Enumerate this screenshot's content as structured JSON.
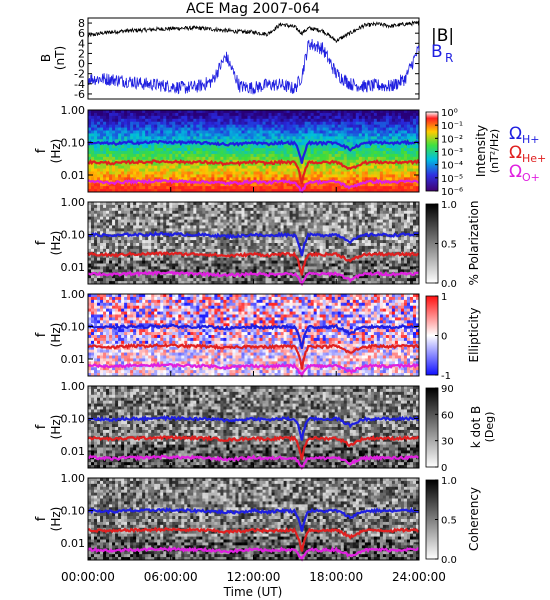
{
  "chart_data": [
    {
      "type": "line",
      "title": "ACE Mag 2007-064",
      "ylabel": "B",
      "yunit": "(nT)",
      "ylim": [
        -7,
        9
      ],
      "yticks": [
        "8",
        "6",
        "4",
        "2",
        "0",
        "-2",
        "-4",
        "-6"
      ],
      "ytick_values": [
        8,
        6,
        4,
        2,
        0,
        -2,
        -4,
        -6
      ],
      "series": [
        {
          "name": "|B|",
          "color": "#000000",
          "x": [
            0,
            1,
            2,
            3,
            4,
            5,
            6,
            7,
            8,
            9,
            10,
            11,
            12,
            13,
            14,
            15,
            15.5,
            16,
            17,
            18,
            19,
            20,
            21,
            22,
            23,
            24
          ],
          "values": [
            5.5,
            6.0,
            6.3,
            6.5,
            6.6,
            6.8,
            6.9,
            7.0,
            7.0,
            6.8,
            6.5,
            6.3,
            6.2,
            5.8,
            7.8,
            7.2,
            6.0,
            7.0,
            6.5,
            4.5,
            6.0,
            7.5,
            7.8,
            7.4,
            7.8,
            8.0
          ]
        },
        {
          "name": "B",
          "subscript": "R",
          "color": "#1f1fe0",
          "x": [
            0,
            1,
            2,
            3,
            4,
            5,
            6,
            7,
            8,
            9,
            10,
            11,
            12,
            13,
            14,
            15,
            15.5,
            16,
            17,
            18,
            19,
            20,
            21,
            22,
            23,
            24
          ],
          "values": [
            -3,
            -3,
            -3.2,
            -3.5,
            -4,
            -4.2,
            -4.5,
            -4.8,
            -4.5,
            -3.5,
            1.5,
            -4.5,
            -4.8,
            -4.2,
            -4.2,
            -5,
            -2.5,
            4,
            3,
            -2,
            -4,
            -4.5,
            -4.3,
            -4.5,
            -3,
            3
          ]
        }
      ]
    },
    {
      "type": "heatmap",
      "ylabel": "f",
      "yunit": "(Hz)",
      "cbar_label": "Intensity",
      "cbar_unit": "(nT²/Hz)",
      "cbar_ticks": [
        "10⁰",
        "10⁻¹",
        "10⁻²",
        "10⁻³",
        "10⁻⁴",
        "10⁻⁵",
        "10⁻⁶"
      ],
      "cbar_range": [
        -6,
        0
      ],
      "cbar_scale": "log",
      "legend": [
        {
          "label": "Ω",
          "sub": "H+",
          "color": "#1f1fe0"
        },
        {
          "label": "Ω",
          "sub": "He+",
          "color": "#e02020"
        },
        {
          "label": "Ω",
          "sub": "O+",
          "color": "#e020e0"
        }
      ]
    },
    {
      "type": "heatmap",
      "ylabel": "f",
      "yunit": "(Hz)",
      "cbar_label": "% Polarization",
      "cbar_ticks": [
        "1.0",
        "0.5",
        "0.0"
      ],
      "cbar_range": [
        0,
        1
      ]
    },
    {
      "type": "heatmap",
      "ylabel": "f",
      "yunit": "(Hz)",
      "cbar_label": "Ellipticity",
      "cbar_ticks": [
        "1",
        "0",
        "-1"
      ],
      "cbar_range": [
        -1,
        1
      ]
    },
    {
      "type": "heatmap",
      "ylabel": "f",
      "yunit": "(Hz)",
      "cbar_label": "k dot B",
      "cbar_unit": "(Deg)",
      "cbar_ticks": [
        "90",
        "60",
        "30",
        "0"
      ],
      "cbar_range": [
        0,
        90
      ]
    },
    {
      "type": "heatmap",
      "ylabel": "f",
      "yunit": "(Hz)",
      "cbar_label": "Coherency",
      "cbar_ticks": [
        "1.0",
        "0.5",
        "0.0"
      ],
      "cbar_range": [
        0,
        1
      ]
    }
  ],
  "spectrogram_axes": {
    "yscale": "log",
    "ylim": [
      0.003,
      1.0
    ],
    "yticks": [
      "1.00",
      "0.10",
      "0.01"
    ],
    "ytick_values": [
      1.0,
      0.1,
      0.01
    ]
  },
  "gyro_lines": {
    "x_hours": [
      0,
      1,
      2,
      3,
      4,
      5,
      6,
      7,
      8,
      9,
      10,
      11,
      12,
      13,
      14,
      15,
      15.5,
      16,
      17,
      18,
      19,
      20,
      21,
      22,
      23,
      24
    ],
    "H_plus_hz": [
      0.1,
      0.095,
      0.092,
      0.1,
      0.098,
      0.105,
      0.102,
      0.1,
      0.098,
      0.095,
      0.088,
      0.09,
      0.1,
      0.09,
      0.1,
      0.095,
      0.02,
      0.098,
      0.095,
      0.1,
      0.06,
      0.095,
      0.1,
      0.095,
      0.1,
      0.1
    ],
    "He_plus_hz": [
      0.025,
      0.024,
      0.023,
      0.025,
      0.025,
      0.026,
      0.026,
      0.025,
      0.025,
      0.024,
      0.022,
      0.023,
      0.025,
      0.023,
      0.025,
      0.024,
      0.005,
      0.025,
      0.024,
      0.025,
      0.015,
      0.024,
      0.025,
      0.024,
      0.025,
      0.025
    ],
    "O_plus_hz": [
      0.0065,
      0.006,
      0.0058,
      0.0063,
      0.0062,
      0.0066,
      0.0065,
      0.0063,
      0.0062,
      0.006,
      0.0055,
      0.0058,
      0.0063,
      0.0058,
      0.0063,
      0.006,
      0.003,
      0.0062,
      0.006,
      0.0063,
      0.004,
      0.006,
      0.0063,
      0.006,
      0.0063,
      0.0063
    ]
  },
  "time_axis": {
    "label": "Time (UT)",
    "ticks": [
      "00:00:00",
      "06:00:00",
      "12:00:00",
      "18:00:00",
      "24:00:00"
    ],
    "tick_hours": [
      0,
      6,
      12,
      18,
      24
    ],
    "range": [
      0,
      24
    ]
  },
  "colors": {
    "H_plus": "#1f1fe0",
    "He_plus": "#e02020",
    "O_plus": "#e020e0",
    "B_total": "#000000",
    "B_R": "#1f1fe0"
  }
}
